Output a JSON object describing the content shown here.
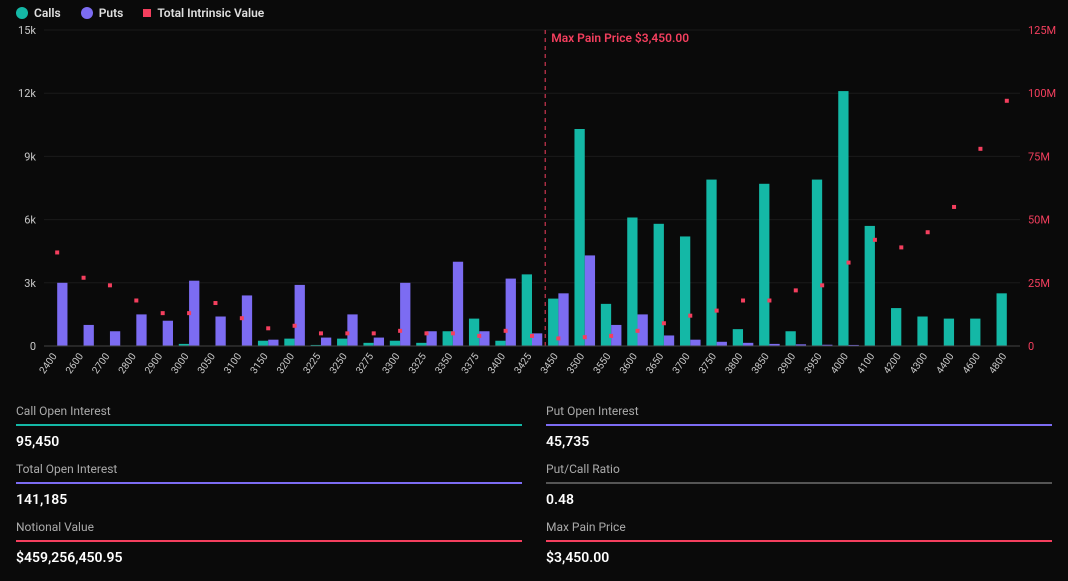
{
  "legend": {
    "calls": {
      "label": "Calls",
      "color": "#14b8a6"
    },
    "puts": {
      "label": "Puts",
      "color": "#7c6cf2"
    },
    "intrinsic": {
      "label": "Total Intrinsic Value",
      "color": "#f43f5e"
    }
  },
  "chart": {
    "type": "grouped-bar-with-scatter",
    "background_color": "#0a0a0a",
    "axis_text_color": "#c8c8c8",
    "left_axis": {
      "min": 0,
      "max": 15000,
      "ticks": [
        0,
        3000,
        6000,
        9000,
        12000,
        15000
      ],
      "tick_labels": [
        "0",
        "3k",
        "6k",
        "9k",
        "12k",
        "15k"
      ]
    },
    "right_axis": {
      "min": 0,
      "max": 125000000,
      "ticks": [
        0,
        25000000,
        50000000,
        75000000,
        100000000,
        125000000
      ],
      "tick_labels": [
        "0",
        "25M",
        "50M",
        "75M",
        "100M",
        "125M"
      ],
      "label_color": "#f43f5e"
    },
    "max_pain": {
      "strike": 3450,
      "label": "Max Pain Price $3,450.00",
      "line_color": "#f43f5e",
      "line_dash": "4,4"
    },
    "gridline_color": "#1a1a1a",
    "bar_group_width_ratio": 0.78,
    "marker_size": 4,
    "strikes": [
      2400,
      2600,
      2700,
      2800,
      2900,
      3000,
      3050,
      3100,
      3150,
      3200,
      3225,
      3250,
      3275,
      3300,
      3325,
      3350,
      3375,
      3400,
      3425,
      3450,
      3500,
      3550,
      3600,
      3650,
      3700,
      3750,
      3800,
      3850,
      3900,
      3950,
      4000,
      4100,
      4200,
      4300,
      4400,
      4600,
      4800
    ],
    "series": {
      "calls": {
        "color": "#14b8a6",
        "values": [
          0,
          0,
          0,
          0,
          0,
          100,
          0,
          0,
          250,
          350,
          50,
          350,
          150,
          250,
          150,
          700,
          1300,
          250,
          3400,
          2250,
          10300,
          2000,
          6100,
          5800,
          5200,
          7900,
          800,
          7700,
          700,
          7900,
          12100,
          5700,
          1800,
          1400,
          1300,
          1300,
          2500
        ]
      },
      "puts": {
        "color": "#7c6cf2",
        "values": [
          3000,
          1000,
          700,
          1500,
          1200,
          3100,
          1400,
          2400,
          300,
          2900,
          400,
          1500,
          400,
          3000,
          700,
          4000,
          700,
          3200,
          600,
          2500,
          4300,
          1000,
          1500,
          500,
          300,
          200,
          150,
          100,
          80,
          60,
          50,
          0,
          0,
          0,
          0,
          0,
          0
        ]
      },
      "intrinsic": {
        "color": "#f43f5e",
        "values": [
          37000000,
          27000000,
          24000000,
          18000000,
          13000000,
          13000000,
          17000000,
          11000000,
          7000000,
          8000000,
          5000000,
          5000000,
          5000000,
          6000000,
          5000000,
          5000000,
          4000000,
          6000000,
          4000000,
          3000000,
          3500000,
          4000000,
          6000000,
          9000000,
          12000000,
          14000000,
          18000000,
          18000000,
          22000000,
          24000000,
          33000000,
          42000000,
          39000000,
          45000000,
          55000000,
          78000000,
          97000000
        ]
      }
    }
  },
  "stats": {
    "call_open_interest": {
      "label": "Call Open Interest",
      "value": "95,450",
      "underline_color": "#14b8a6"
    },
    "put_open_interest": {
      "label": "Put Open Interest",
      "value": "45,735",
      "underline_color": "#7c6cf2"
    },
    "total_open_interest": {
      "label": "Total Open Interest",
      "value": "141,185",
      "underline_color": "#7c6cf2"
    },
    "put_call_ratio": {
      "label": "Put/Call Ratio",
      "value": "0.48",
      "underline_color": "#555555"
    },
    "notional_value": {
      "label": "Notional Value",
      "value": "$459,256,450.95",
      "underline_color": "#f43f5e"
    },
    "max_pain_price": {
      "label": "Max Pain Price",
      "value": "$3,450.00",
      "underline_color": "#f43f5e"
    }
  }
}
